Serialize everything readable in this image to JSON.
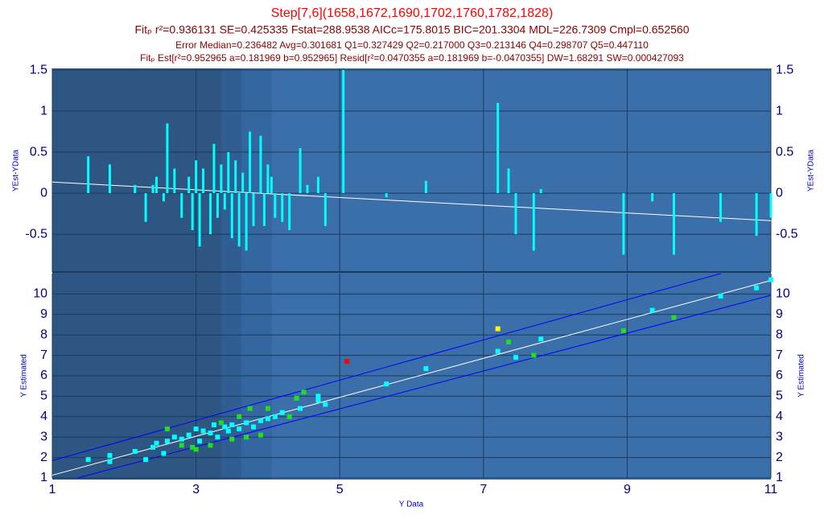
{
  "chart_data": [
    {
      "type": "bar",
      "title": "Step[7,6](1658,1672,1690,1702,1760,1782,1828)",
      "subtitle": "Fitₚ r²=0.936131 SE=0.425335 Fstat=288.9538 AICc=175.8015 BIC=201.3304 MDL=226.7309 Cmpl=0.652560",
      "annotations": [
        "Error Median=0.236482 Avg=0.301681 Q1=0.327429 Q2=0.217000 Q3=0.213146 Q4=0.298707 Q5=0.447110",
        "Fitₚ Est[r²=0.952965 a=0.181969 b=0.952965] Resid[r²=0.0470355 a=0.181969 b=-0.0470355] DW=1.68291 SW=0.000427093"
      ],
      "ylabel": "YEst-YData",
      "color": "#00ffff",
      "x": [
        1.5,
        1.8,
        1.8,
        2.15,
        2.3,
        2.4,
        2.45,
        2.55,
        2.6,
        2.7,
        2.8,
        2.9,
        2.95,
        3.0,
        3.05,
        3.1,
        3.2,
        3.25,
        3.3,
        3.35,
        3.4,
        3.45,
        3.5,
        3.55,
        3.6,
        3.65,
        3.7,
        3.75,
        3.8,
        3.9,
        3.95,
        4.0,
        4.05,
        4.1,
        4.2,
        4.3,
        4.45,
        4.55,
        4.7,
        4.8,
        5.05,
        5.65,
        6.2,
        7.2,
        7.35,
        7.45,
        7.7,
        7.8,
        8.95,
        9.35,
        9.65,
        10.3,
        10.8,
        11.0
      ],
      "values": [
        0.45,
        0.05,
        0.35,
        0.1,
        -0.35,
        0.1,
        0.2,
        -0.1,
        0.85,
        0.3,
        -0.3,
        0.2,
        -0.45,
        0.4,
        -0.65,
        0.3,
        -0.5,
        0.6,
        -0.3,
        0.35,
        -0.2,
        0.5,
        -0.55,
        0.4,
        -0.65,
        0.25,
        -0.7,
        0.75,
        -0.4,
        0.7,
        -0.4,
        0.35,
        0.2,
        -0.3,
        -0.35,
        -0.45,
        0.55,
        0.1,
        0.2,
        -0.4,
        1.5,
        -0.05,
        0.15,
        1.1,
        0.3,
        -0.5,
        -0.7,
        0.05,
        -0.75,
        -0.1,
        -0.75,
        -0.35,
        -0.52,
        -0.3
      ],
      "xlim": [
        1,
        11
      ],
      "ylim": [
        -0.96,
        1.52
      ],
      "yticks": [
        1.5,
        1,
        0.5,
        0,
        -0.5
      ],
      "lines": [
        {
          "x": [
            1,
            11
          ],
          "values": [
            0.135,
            -0.335
          ],
          "color": "#ffffff"
        }
      ]
    },
    {
      "type": "scatter",
      "xlabel": "Y Data",
      "ylabel": "Y Estimated",
      "xlim": [
        1,
        11
      ],
      "ylim": [
        1,
        11
      ],
      "xticks": [
        1,
        3,
        5,
        7,
        9,
        11
      ],
      "yticks": [
        1,
        2,
        3,
        4,
        5,
        6,
        7,
        8,
        9,
        10
      ],
      "series": [
        {
          "color": "#00ffff",
          "x": [
            1.5,
            1.8,
            1.8,
            2.15,
            2.3,
            2.4,
            2.45,
            2.55,
            2.6,
            2.7,
            2.8,
            2.9,
            3.0,
            3.05,
            3.1,
            3.2,
            3.25,
            3.3,
            3.4,
            3.45,
            3.5,
            3.6,
            3.7,
            3.8,
            3.9,
            4.0,
            4.1,
            4.2,
            4.45,
            4.7,
            4.7,
            4.8,
            5.65,
            6.2,
            7.2,
            7.45,
            7.8,
            9.35,
            10.3,
            10.8,
            11.0
          ],
          "values": [
            1.9,
            1.8,
            2.1,
            2.3,
            1.9,
            2.5,
            2.7,
            2.2,
            2.8,
            3.0,
            2.9,
            3.1,
            3.4,
            2.8,
            3.3,
            3.2,
            3.6,
            3.0,
            3.5,
            3.3,
            3.6,
            3.4,
            3.7,
            3.5,
            3.8,
            3.9,
            4.0,
            4.2,
            4.4,
            5.0,
            4.8,
            4.6,
            5.6,
            6.35,
            7.2,
            6.9,
            7.8,
            9.2,
            9.9,
            10.3,
            10.7
          ]
        },
        {
          "color": "#22dd22",
          "x": [
            2.6,
            2.8,
            2.95,
            3.0,
            3.2,
            3.35,
            3.5,
            3.6,
            3.7,
            3.75,
            3.9,
            4.0,
            4.3,
            4.4,
            4.5,
            7.35,
            7.7,
            8.95,
            9.65
          ],
          "values": [
            3.4,
            2.6,
            2.5,
            2.4,
            2.6,
            3.7,
            2.9,
            4.0,
            3.0,
            4.4,
            3.1,
            4.4,
            4.0,
            4.9,
            5.2,
            7.65,
            7.0,
            8.2,
            8.85
          ]
        },
        {
          "color": "#ffff00",
          "x": [
            7.2
          ],
          "values": [
            8.3
          ]
        },
        {
          "color": "#ff0000",
          "x": [
            5.1
          ],
          "values": [
            6.7
          ]
        }
      ],
      "lines": [
        {
          "x": [
            1,
            11
          ],
          "values": [
            1.135,
            10.664
          ],
          "color": "#ffffff"
        },
        {
          "x": [
            1,
            10.3
          ],
          "values": [
            1.85,
            11
          ],
          "color": "#0000ff"
        },
        {
          "x": [
            1.35,
            11
          ],
          "values": [
            1,
            9.94
          ],
          "color": "#0000ff"
        }
      ]
    }
  ]
}
